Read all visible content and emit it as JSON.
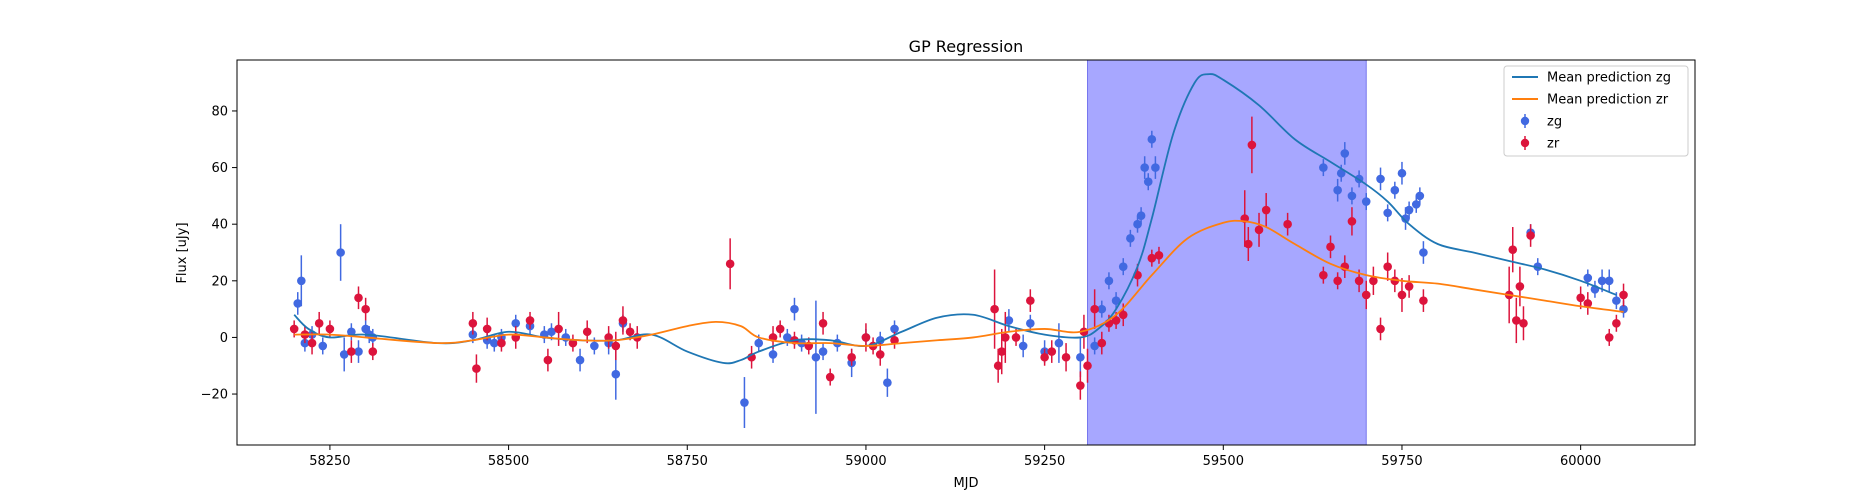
{
  "chart_data": {
    "type": "scatter",
    "title": "GP Regression",
    "xlabel": "MJD",
    "ylabel": "Flux [uJy]",
    "xlim": [
      58120,
      60160
    ],
    "ylim": [
      -38,
      98
    ],
    "xticks": [
      58250,
      58500,
      58750,
      59000,
      59250,
      59500,
      59750,
      60000
    ],
    "yticks": [
      -20,
      0,
      20,
      40,
      60,
      80
    ],
    "grid": false,
    "legend": "top-right",
    "highlight_span": {
      "x0": 59310,
      "x1": 59700,
      "color": "#a7a7ff"
    },
    "colors": {
      "zg_points": "#4169e1",
      "zr_points": "#dc143c",
      "zg_line": "#1f77b4",
      "zr_line": "#ff7f0e"
    },
    "lines": [
      {
        "name": "Mean prediction zg",
        "x": [
          58200,
          58220,
          58250,
          58300,
          58400,
          58450,
          58500,
          58550,
          58600,
          58650,
          58700,
          58750,
          58800,
          58825,
          58850,
          58900,
          58950,
          59000,
          59050,
          59100,
          59150,
          59200,
          59250,
          59300,
          59325,
          59350,
          59380,
          59400,
          59430,
          59460,
          59480,
          59500,
          59550,
          59600,
          59650,
          59700,
          59730,
          59760,
          59800,
          59850,
          59900,
          59950,
          60000,
          60050
        ],
        "y": [
          8,
          3,
          0,
          1,
          -2,
          -1,
          2,
          0,
          -1,
          -1,
          1,
          -5,
          -9,
          -8,
          -5,
          -1,
          -1,
          -3,
          2,
          7,
          8,
          4,
          1,
          0,
          3,
          10,
          25,
          42,
          72,
          90,
          93,
          91,
          82,
          70,
          62,
          54,
          48,
          40,
          33,
          30,
          27,
          24,
          20,
          15
        ]
      },
      {
        "name": "Mean prediction zr",
        "x": [
          58200,
          58250,
          58300,
          58400,
          58450,
          58500,
          58550,
          58600,
          58650,
          58700,
          58750,
          58790,
          58825,
          58850,
          58900,
          58950,
          59000,
          59050,
          59100,
          59150,
          59200,
          59250,
          59300,
          59350,
          59400,
          59450,
          59500,
          59530,
          59560,
          59600,
          59650,
          59700,
          59750,
          59800,
          59850,
          59900,
          59950,
          60000,
          60060
        ],
        "y": [
          1,
          1,
          0,
          -2,
          -1,
          1,
          0,
          -1,
          -1,
          1,
          4,
          5.5,
          4,
          0,
          -2,
          -2,
          -3,
          -2,
          -1,
          0,
          2,
          3,
          2,
          8,
          22,
          35,
          40.5,
          41,
          39,
          33,
          26,
          22,
          20,
          19,
          17,
          15,
          13,
          11,
          9
        ]
      }
    ],
    "series": [
      {
        "name": "zg",
        "x": [
          58205,
          58210,
          58215,
          58225,
          58240,
          58265,
          58270,
          58280,
          58290,
          58300,
          58305,
          58310,
          58450,
          58470,
          58480,
          58490,
          58510,
          58530,
          58550,
          58560,
          58580,
          58600,
          58620,
          58640,
          58650,
          58660,
          58830,
          58850,
          58870,
          58890,
          58900,
          58910,
          58930,
          58940,
          58960,
          58980,
          59000,
          59020,
          59030,
          59040,
          59200,
          59220,
          59230,
          59250,
          59270,
          59300,
          59320,
          59330,
          59340,
          59350,
          59360,
          59370,
          59380,
          59385,
          59390,
          59395,
          59400,
          59405,
          59640,
          59660,
          59665,
          59670,
          59680,
          59690,
          59700,
          59720,
          59730,
          59740,
          59750,
          59755,
          59760,
          59770,
          59775,
          59780,
          59930,
          59940,
          60010,
          60020,
          60030,
          60040,
          60050,
          60060
        ],
        "y": [
          12,
          20,
          -2,
          1,
          -3,
          30,
          -6,
          2,
          -5,
          3,
          1,
          0,
          1,
          -1,
          -2,
          0,
          5,
          4,
          1,
          2,
          0,
          -8,
          -3,
          -2,
          -13,
          5,
          -23,
          -2,
          -6,
          0,
          10,
          -2,
          -7,
          -5,
          -2,
          -9,
          0,
          -1,
          -16,
          3,
          6,
          -3,
          5,
          -5,
          -2,
          -7,
          -3,
          10,
          20,
          13,
          25,
          35,
          40,
          43,
          60,
          55,
          70,
          60,
          60,
          52,
          58,
          65,
          50,
          56,
          48,
          56,
          44,
          52,
          58,
          42,
          45,
          47,
          50,
          30,
          37,
          25,
          21,
          17,
          20,
          20,
          13,
          10
        ],
        "yerr": [
          4,
          9,
          3,
          3,
          3,
          10,
          6,
          3,
          4,
          3,
          3,
          3,
          3,
          3,
          3,
          3,
          3,
          3,
          3,
          3,
          3,
          4,
          3,
          4,
          9,
          3,
          9,
          3,
          3,
          3,
          4,
          3,
          20,
          3,
          3,
          5,
          3,
          3,
          5,
          3,
          4,
          4,
          3,
          4,
          7,
          7,
          3,
          3,
          3,
          3,
          3,
          3,
          3,
          3,
          4,
          3,
          3,
          4,
          3,
          4,
          3,
          4,
          3,
          3,
          3,
          4,
          3,
          3,
          4,
          4,
          3,
          3,
          3,
          4,
          3,
          3,
          3,
          3,
          4,
          4,
          3,
          3
        ]
      },
      {
        "name": "zr",
        "x": [
          58200,
          58215,
          58225,
          58235,
          58250,
          58280,
          58290,
          58300,
          58310,
          58450,
          58455,
          58470,
          58490,
          58510,
          58530,
          58555,
          58570,
          58590,
          58610,
          58640,
          58650,
          58660,
          58670,
          58680,
          58810,
          58840,
          58870,
          58880,
          58900,
          58920,
          58940,
          58950,
          58980,
          59000,
          59010,
          59020,
          59040,
          59180,
          59185,
          59190,
          59195,
          59210,
          59230,
          59250,
          59260,
          59280,
          59300,
          59305,
          59310,
          59320,
          59330,
          59340,
          59350,
          59360,
          59380,
          59400,
          59410,
          59530,
          59535,
          59540,
          59550,
          59560,
          59590,
          59640,
          59650,
          59660,
          59670,
          59680,
          59690,
          59700,
          59710,
          59720,
          59730,
          59740,
          59750,
          59760,
          59780,
          59900,
          59905,
          59910,
          59915,
          59920,
          59930,
          60000,
          60010,
          60040,
          60050,
          60060
        ],
        "y": [
          3,
          1,
          -2,
          5,
          3,
          -5,
          14,
          10,
          -5,
          5,
          -11,
          3,
          -2,
          0,
          6,
          -8,
          3,
          -2,
          2,
          0,
          -3,
          6,
          2,
          0,
          26,
          -7,
          0,
          3,
          -1,
          -3,
          5,
          -14,
          -7,
          0,
          -3,
          -6,
          -1,
          10,
          -10,
          -5,
          0,
          0,
          13,
          -7,
          -5,
          -7,
          -17,
          2,
          -10,
          10,
          -2,
          5,
          6,
          8,
          22,
          28,
          29,
          42,
          33,
          68,
          38,
          45,
          40,
          22,
          32,
          20,
          25,
          41,
          20,
          15,
          20,
          3,
          25,
          20,
          15,
          18,
          13,
          15,
          31,
          6,
          18,
          5,
          36,
          14,
          12,
          0,
          5,
          15
        ],
        "yerr": [
          3,
          3,
          4,
          4,
          3,
          4,
          4,
          4,
          3,
          4,
          5,
          4,
          3,
          4,
          3,
          4,
          6,
          3,
          4,
          4,
          5,
          5,
          3,
          4,
          9,
          4,
          4,
          3,
          3,
          3,
          4,
          3,
          3,
          5,
          3,
          4,
          3,
          14,
          6,
          8,
          9,
          3,
          4,
          3,
          4,
          5,
          5,
          6,
          6,
          7,
          4,
          3,
          3,
          4,
          4,
          3,
          3,
          10,
          6,
          10,
          6,
          6,
          4,
          3,
          4,
          3,
          4,
          5,
          4,
          5,
          5,
          4,
          5,
          4,
          6,
          4,
          4,
          10,
          8,
          8,
          7,
          6,
          4,
          4,
          4,
          3,
          3,
          4
        ]
      }
    ]
  }
}
